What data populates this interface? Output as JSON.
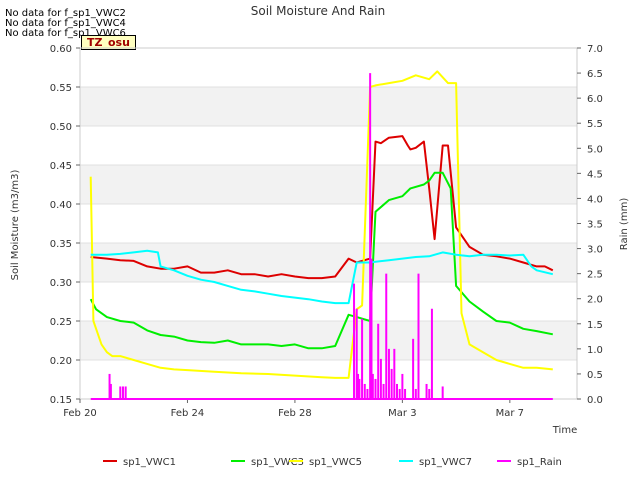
{
  "no_data_messages": [
    "No data for f_sp1_VWC2",
    "No data for f_sp1_VWC4",
    "No data for f_sp1_VWC6"
  ],
  "badge": "TZ_osu",
  "chart_data": {
    "type": "line",
    "title": "Soil Moisture And Rain",
    "xlabel": "Time",
    "ylabel": "Soil Moisture (m3/m3)",
    "y2label": "Rain (mm)",
    "xlim": [
      0,
      18.5
    ],
    "ylim": [
      0.15,
      0.6
    ],
    "y2lim": [
      0,
      7
    ],
    "x_unit": "days since Feb 20",
    "x_ticks": [
      {
        "x": 0,
        "label": "Feb 20"
      },
      {
        "x": 4,
        "label": "Feb 24"
      },
      {
        "x": 8,
        "label": "Feb 28"
      },
      {
        "x": 12,
        "label": "Mar 3"
      },
      {
        "x": 16,
        "label": "Mar 7"
      }
    ],
    "y_ticks": [
      0.15,
      0.2,
      0.25,
      0.3,
      0.35,
      0.4,
      0.45,
      0.5,
      0.55,
      0.6
    ],
    "y2_ticks": [
      0.0,
      0.5,
      1.0,
      1.5,
      2.0,
      2.5,
      3.0,
      3.5,
      4.0,
      4.5,
      5.0,
      5.5,
      6.0,
      6.5,
      7.0
    ],
    "grid": true,
    "legend_position": "bottom",
    "series": [
      {
        "name": "sp1_VWC1",
        "color": "#dd0000",
        "axis": "left",
        "x": [
          0.4,
          1.0,
          1.5,
          2.0,
          2.5,
          3.0,
          3.5,
          4.0,
          4.5,
          5.0,
          5.5,
          6.0,
          6.5,
          7.0,
          7.5,
          8.0,
          8.5,
          9.0,
          9.5,
          10.0,
          10.3,
          10.8,
          11.0,
          11.2,
          11.5,
          12.0,
          12.2,
          12.3,
          12.5,
          12.8,
          13.0,
          13.2,
          13.5,
          13.7,
          14.0,
          14.5,
          15.0,
          15.5,
          16.0,
          16.5,
          17.0,
          17.3,
          17.6
        ],
        "y": [
          0.332,
          0.33,
          0.328,
          0.327,
          0.32,
          0.317,
          0.317,
          0.32,
          0.312,
          0.312,
          0.315,
          0.31,
          0.31,
          0.307,
          0.31,
          0.307,
          0.305,
          0.305,
          0.307,
          0.33,
          0.325,
          0.33,
          0.48,
          0.478,
          0.485,
          0.487,
          0.475,
          0.47,
          0.472,
          0.48,
          0.42,
          0.355,
          0.475,
          0.475,
          0.37,
          0.345,
          0.335,
          0.333,
          0.33,
          0.325,
          0.32,
          0.32,
          0.315
        ]
      },
      {
        "name": "sp1_VWC3",
        "color": "#00ee00",
        "axis": "left",
        "x": [
          0.4,
          0.6,
          1.0,
          1.5,
          2.0,
          2.5,
          3.0,
          3.5,
          4.0,
          4.5,
          5.0,
          5.5,
          6.0,
          6.5,
          7.0,
          7.5,
          8.0,
          8.5,
          9.0,
          9.5,
          10.0,
          10.3,
          10.8,
          11.0,
          11.5,
          12.0,
          12.3,
          12.8,
          13.0,
          13.2,
          13.5,
          13.8,
          14.0,
          14.5,
          15.0,
          15.5,
          16.0,
          16.5,
          17.0,
          17.6
        ],
        "y": [
          0.278,
          0.265,
          0.255,
          0.25,
          0.248,
          0.238,
          0.232,
          0.23,
          0.225,
          0.223,
          0.222,
          0.225,
          0.22,
          0.22,
          0.22,
          0.218,
          0.22,
          0.215,
          0.215,
          0.218,
          0.258,
          0.255,
          0.25,
          0.39,
          0.405,
          0.41,
          0.42,
          0.425,
          0.43,
          0.44,
          0.44,
          0.42,
          0.295,
          0.275,
          0.262,
          0.25,
          0.248,
          0.24,
          0.237,
          0.233
        ]
      },
      {
        "name": "sp1_VWC5",
        "color": "#ffff00",
        "axis": "left",
        "x": [
          0.4,
          0.5,
          0.8,
          1.0,
          1.2,
          1.5,
          2.0,
          2.5,
          3.0,
          3.5,
          4.0,
          5.0,
          6.0,
          7.0,
          8.0,
          9.0,
          9.5,
          10.0,
          10.3,
          10.5,
          10.8,
          11.0,
          11.5,
          12.0,
          12.5,
          13.0,
          13.3,
          13.7,
          14.0,
          14.2,
          14.5,
          15.0,
          15.5,
          16.0,
          16.5,
          17.0,
          17.6
        ],
        "y": [
          0.435,
          0.25,
          0.22,
          0.21,
          0.205,
          0.205,
          0.2,
          0.195,
          0.19,
          0.188,
          0.187,
          0.185,
          0.183,
          0.182,
          0.18,
          0.178,
          0.177,
          0.177,
          0.265,
          0.27,
          0.55,
          0.552,
          0.555,
          0.558,
          0.565,
          0.56,
          0.57,
          0.555,
          0.555,
          0.26,
          0.22,
          0.21,
          0.2,
          0.195,
          0.19,
          0.19,
          0.188
        ]
      },
      {
        "name": "sp1_VWC7",
        "color": "#00ffff",
        "axis": "left",
        "x": [
          0.4,
          1.0,
          1.5,
          2.0,
          2.5,
          2.9,
          3.0,
          3.5,
          4.0,
          4.5,
          5.0,
          5.5,
          6.0,
          6.5,
          7.0,
          7.5,
          8.0,
          8.5,
          9.0,
          9.5,
          10.0,
          10.3,
          10.8,
          11.0,
          11.5,
          12.0,
          12.5,
          13.0,
          13.5,
          14.0,
          14.5,
          15.0,
          15.5,
          16.0,
          16.5,
          16.8,
          17.0,
          17.6
        ],
        "y": [
          0.335,
          0.335,
          0.336,
          0.338,
          0.34,
          0.338,
          0.32,
          0.315,
          0.308,
          0.303,
          0.3,
          0.295,
          0.29,
          0.288,
          0.285,
          0.282,
          0.28,
          0.278,
          0.275,
          0.273,
          0.273,
          0.325,
          0.325,
          0.326,
          0.328,
          0.33,
          0.332,
          0.333,
          0.338,
          0.335,
          0.333,
          0.335,
          0.335,
          0.334,
          0.335,
          0.32,
          0.315,
          0.31
        ]
      },
      {
        "name": "sp1_Rain",
        "color": "#ff00ff",
        "axis": "right",
        "style": "spikes",
        "x": [
          1.1,
          1.15,
          1.5,
          1.6,
          1.7,
          10.2,
          10.3,
          10.35,
          10.4,
          10.5,
          10.6,
          10.7,
          10.8,
          10.85,
          10.9,
          11.0,
          11.1,
          11.2,
          11.3,
          11.4,
          11.5,
          11.6,
          11.7,
          11.8,
          11.9,
          12.0,
          12.1,
          12.4,
          12.5,
          12.6,
          12.9,
          13.0,
          13.1,
          13.5
        ],
        "y": [
          0.5,
          0.3,
          0.25,
          0.25,
          0.25,
          2.3,
          1.8,
          0.5,
          0.4,
          1.6,
          0.3,
          0.2,
          6.5,
          2.8,
          0.5,
          0.4,
          1.5,
          0.8,
          0.3,
          2.5,
          1.0,
          0.6,
          1.0,
          0.3,
          0.2,
          0.5,
          0.2,
          1.2,
          0.2,
          2.5,
          0.3,
          0.2,
          1.8,
          0.25
        ]
      }
    ]
  }
}
